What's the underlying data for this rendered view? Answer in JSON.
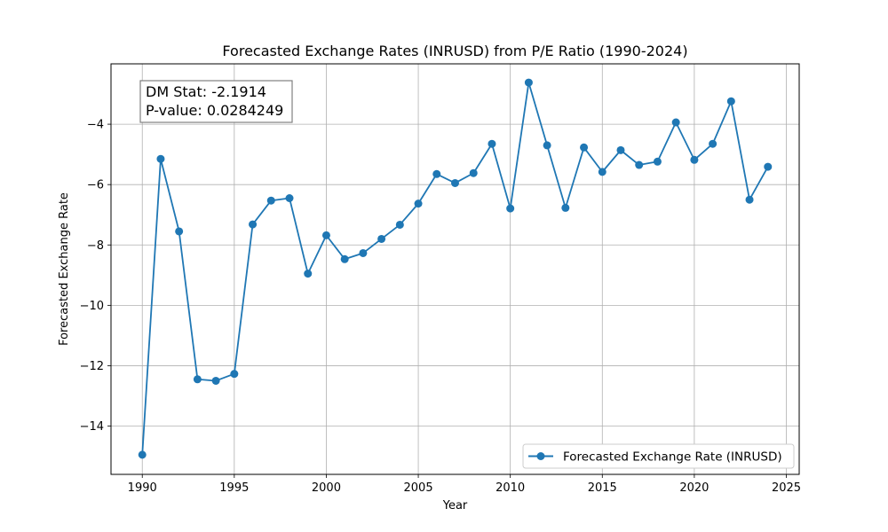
{
  "chart_data": {
    "type": "line",
    "title": "Forecasted Exchange Rates (INRUSD) from P/E Ratio (1990-2024)",
    "xlabel": "Year",
    "ylabel": "Forecasted Exchange Rate",
    "xlim": [
      1988.3,
      2025.7
    ],
    "ylim": [
      -15.6,
      -2.0
    ],
    "xticks": [
      1990,
      1995,
      2000,
      2005,
      2010,
      2015,
      2020,
      2025
    ],
    "yticks": [
      -14,
      -12,
      -10,
      -8,
      -6,
      -4
    ],
    "ytick_labels": [
      "−14",
      "−12",
      "−10",
      "−8",
      "−6",
      "−4"
    ],
    "grid": true,
    "legend_position": "lower-right",
    "series": [
      {
        "name": "Forecasted Exchange Rate (INRUSD)",
        "color": "#1f77b4",
        "marker": "circle",
        "x": [
          1990,
          1991,
          1992,
          1993,
          1994,
          1995,
          1996,
          1997,
          1998,
          1999,
          2000,
          2001,
          2002,
          2003,
          2004,
          2005,
          2006,
          2007,
          2008,
          2009,
          2010,
          2011,
          2012,
          2013,
          2014,
          2015,
          2016,
          2017,
          2018,
          2019,
          2020,
          2021,
          2022,
          2023,
          2024
        ],
        "y": [
          -14.95,
          -5.15,
          -7.55,
          -12.45,
          -12.5,
          -12.27,
          -7.32,
          -6.53,
          -6.45,
          -8.95,
          -7.68,
          -8.47,
          -8.27,
          -7.8,
          -7.33,
          -6.63,
          -5.65,
          -5.95,
          -5.62,
          -4.65,
          -6.79,
          -2.62,
          -4.7,
          -6.77,
          -4.77,
          -5.58,
          -4.86,
          -5.35,
          -5.24,
          -3.94,
          -5.18,
          -4.65,
          -3.24,
          -6.5,
          -5.41
        ]
      }
    ],
    "annotation": {
      "lines": [
        "DM Stat: -2.1914",
        "P-value: 0.0284249"
      ]
    }
  }
}
